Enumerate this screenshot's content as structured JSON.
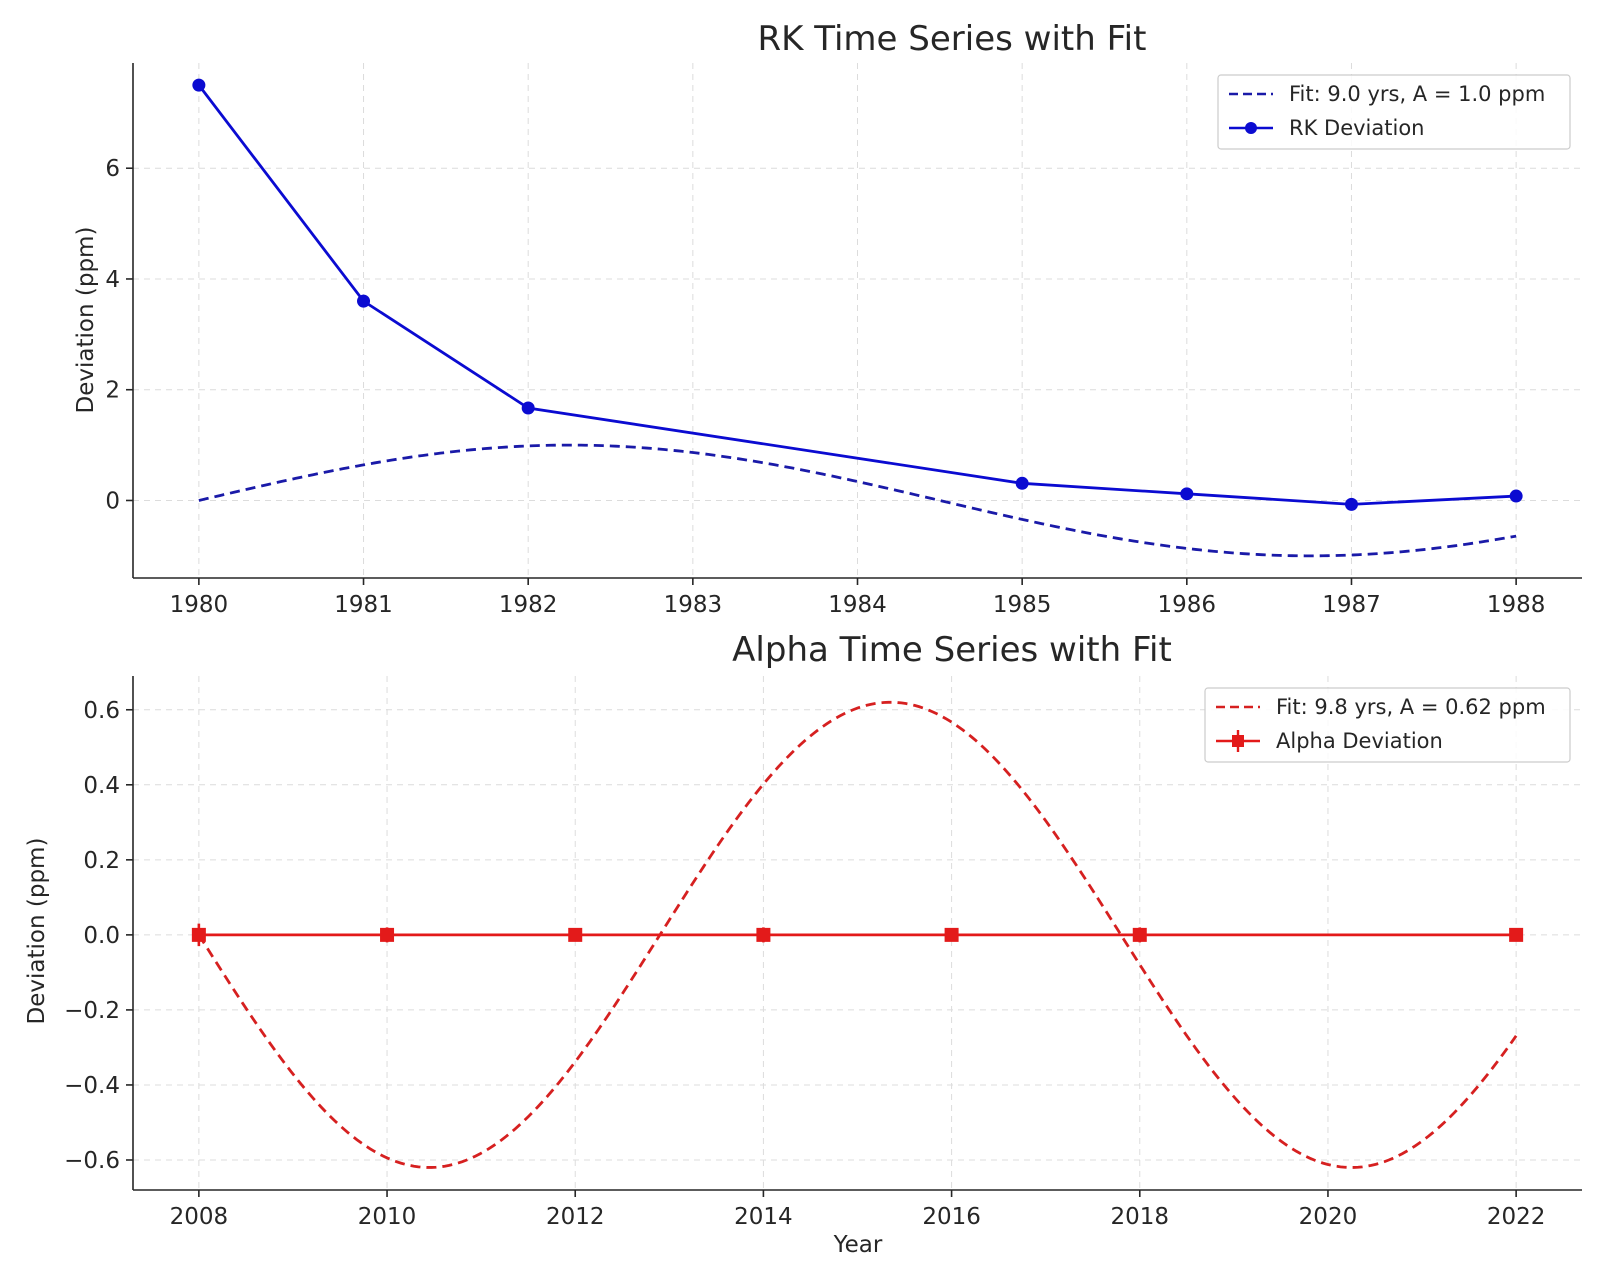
{
  "chart_data": [
    {
      "type": "line",
      "title": "RK Time Series with Fit",
      "xlabel": "",
      "ylabel": "Deviation (ppm)",
      "xlim": [
        1979.6,
        1988.4
      ],
      "ylim": [
        -1.4,
        7.9
      ],
      "xticks": [
        1980,
        1981,
        1982,
        1983,
        1984,
        1985,
        1986,
        1987,
        1988
      ],
      "xtick_labels": [
        "1980",
        "1981",
        "1982",
        "1983",
        "1984",
        "1985",
        "1986",
        "1987",
        "1988"
      ],
      "yticks": [
        0,
        2,
        4,
        6
      ],
      "ytick_labels": [
        "0",
        "2",
        "4",
        "6"
      ],
      "grid": true,
      "legend_position": "top-right",
      "series": [
        {
          "name": "Fit: 9.0 yrs, A = 1.0 ppm",
          "style": "dashed",
          "color": "#1a1aa8",
          "function": "sine",
          "amplitude": 1.0,
          "period": 9.0,
          "x_start": 1980,
          "x_end": 1988
        },
        {
          "name": "RK Deviation",
          "style": "solid",
          "marker": "circle",
          "color": "#0b0bd1",
          "x": [
            1980,
            1981,
            1982,
            1985,
            1986,
            1987,
            1988
          ],
          "y": [
            7.5,
            3.6,
            1.67,
            0.31,
            0.12,
            -0.07,
            0.08
          ]
        }
      ]
    },
    {
      "type": "line",
      "title": "Alpha Time Series with Fit",
      "xlabel": "Year",
      "ylabel": "Deviation (ppm)",
      "xlim": [
        2007.3,
        2022.7
      ],
      "ylim": [
        -0.68,
        0.69
      ],
      "xticks": [
        2008,
        2010,
        2012,
        2014,
        2016,
        2018,
        2020,
        2022
      ],
      "xtick_labels": [
        "2008",
        "2010",
        "2012",
        "2014",
        "2016",
        "2018",
        "2020",
        "2022"
      ],
      "yticks": [
        0.6,
        0.4,
        0.2,
        0.0,
        -0.2,
        -0.4,
        -0.6
      ],
      "ytick_labels": [
        "0.6",
        "0.4",
        "0.2",
        "0.0",
        "−0.2",
        "−0.4",
        "−0.6"
      ],
      "grid": true,
      "legend_position": "top-right",
      "series": [
        {
          "name": "Fit: 9.8 yrs, A = 0.62 ppm",
          "style": "dashed",
          "color": "#d62020",
          "function": "negative-sine",
          "amplitude": 0.62,
          "period": 9.8,
          "x_start": 2008,
          "x_end": 2022
        },
        {
          "name": "Alpha Deviation",
          "style": "solid",
          "marker": "square-errorbar",
          "color": "#e31a1a",
          "x": [
            2008,
            2010,
            2012,
            2014,
            2016,
            2018,
            2022
          ],
          "y": [
            0.0,
            0.0,
            0.0,
            0.0,
            0.0,
            0.0,
            0.0
          ],
          "error": [
            0.03,
            0.02,
            0.015,
            0.02,
            0.015,
            0.02,
            0.015
          ]
        }
      ]
    }
  ]
}
